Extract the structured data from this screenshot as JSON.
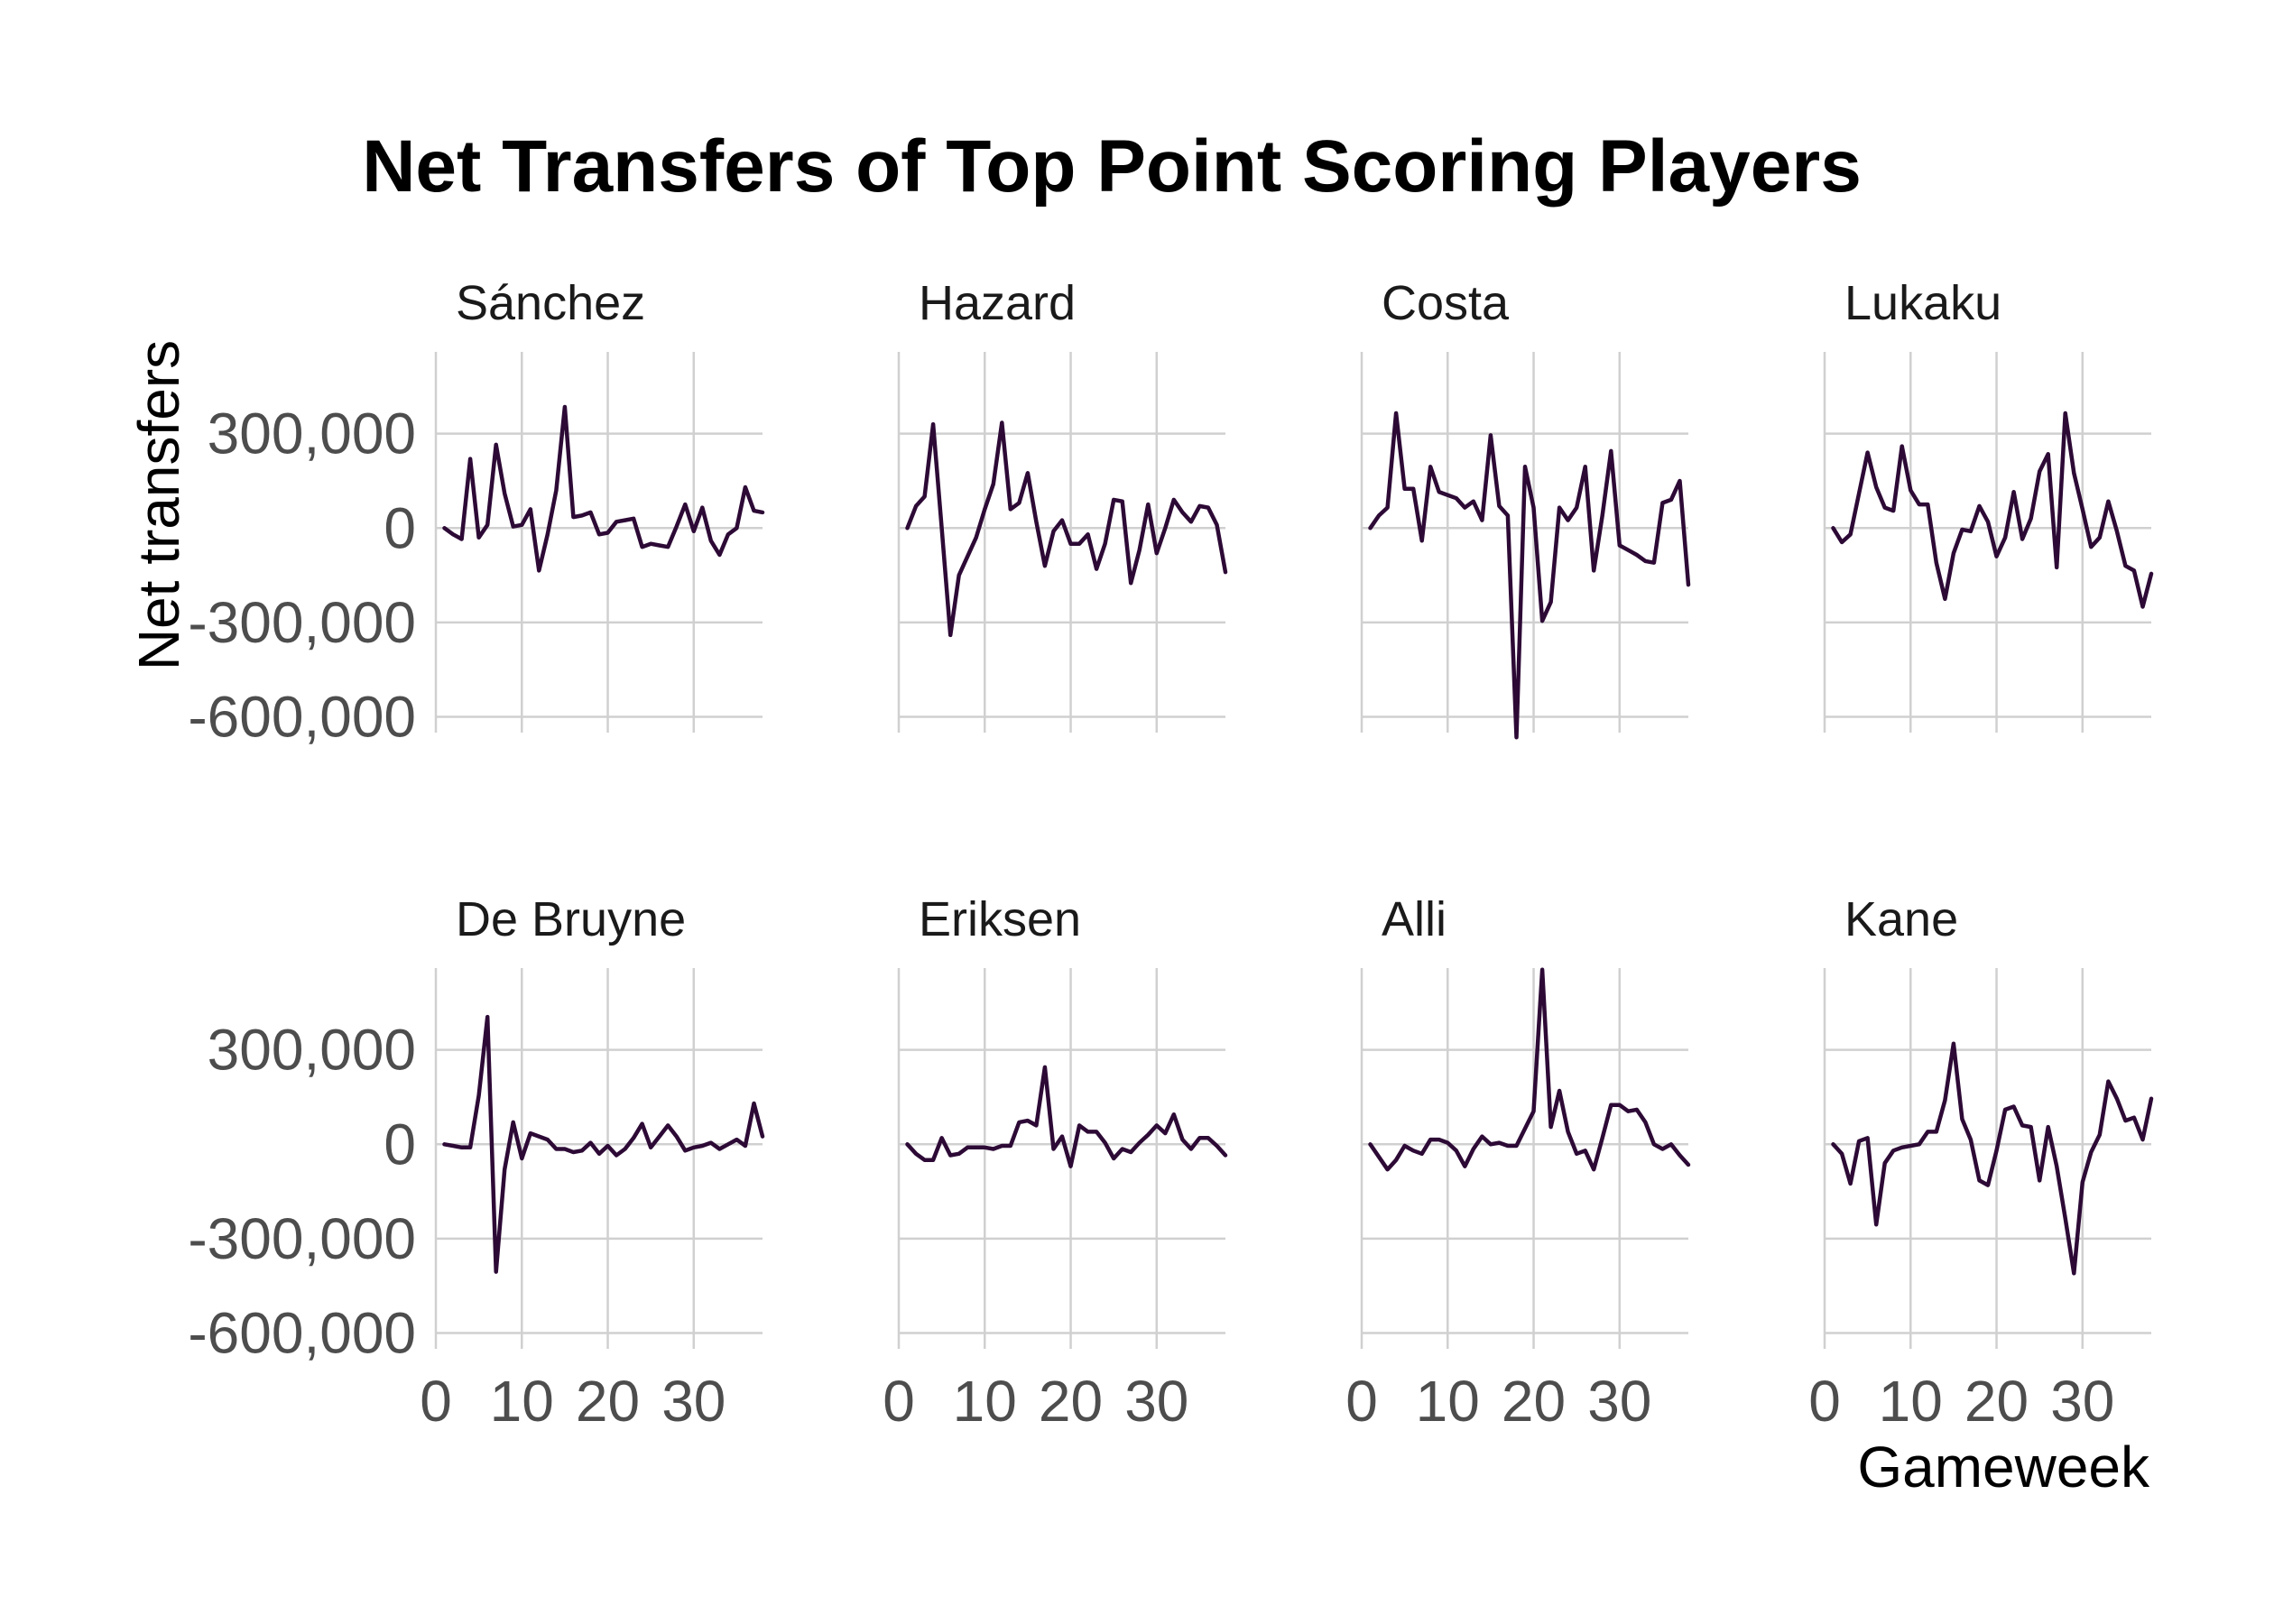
{
  "chart_data": {
    "type": "line",
    "title": "Net Transfers of Top Point Scoring Players",
    "xlabel": "Gameweek",
    "ylabel": "Net transfers",
    "xlim": [
      0,
      38
    ],
    "ylim": [
      -650000,
      560000
    ],
    "x_ticks": [
      0,
      10,
      20,
      30
    ],
    "y_ticks": [
      300000,
      0,
      -300000,
      -600000
    ],
    "y_tick_labels": [
      "300,000",
      "0",
      "-300,000",
      "-600,000"
    ],
    "grid": true,
    "line_color": "#2d0a36",
    "facets": [
      {
        "name": "Sánchez",
        "x": [
          1,
          2,
          3,
          4,
          5,
          6,
          7,
          8,
          9,
          10,
          11,
          12,
          13,
          14,
          15,
          16,
          17,
          18,
          19,
          20,
          21,
          22,
          23,
          24,
          25,
          26,
          27,
          28,
          29,
          30,
          31,
          32,
          33,
          34,
          35,
          36,
          37,
          38
        ],
        "values": [
          0,
          -20000,
          -35000,
          220000,
          -30000,
          10000,
          265000,
          110000,
          5000,
          10000,
          60000,
          -135000,
          -20000,
          120000,
          385000,
          35000,
          40000,
          50000,
          -20000,
          -15000,
          20000,
          25000,
          30000,
          -60000,
          -50000,
          -55000,
          -60000,
          5000,
          75000,
          -10000,
          65000,
          -40000,
          -85000,
          -20000,
          0,
          130000,
          55000,
          50000
        ]
      },
      {
        "name": "Hazard",
        "x": [
          1,
          2,
          3,
          4,
          5,
          6,
          7,
          8,
          9,
          10,
          11,
          12,
          13,
          14,
          15,
          16,
          17,
          18,
          19,
          20,
          21,
          22,
          23,
          24,
          25,
          26,
          27,
          28,
          29,
          30,
          31,
          32,
          33,
          34,
          35,
          36,
          37,
          38
        ],
        "values": [
          0,
          70000,
          100000,
          330000,
          0,
          -340000,
          -150000,
          -90000,
          -30000,
          60000,
          140000,
          335000,
          60000,
          80000,
          175000,
          20000,
          -120000,
          -10000,
          25000,
          -50000,
          -50000,
          -20000,
          -130000,
          -50000,
          90000,
          85000,
          -175000,
          -70000,
          75000,
          -80000,
          0,
          90000,
          50000,
          20000,
          70000,
          65000,
          10000,
          -140000
        ]
      },
      {
        "name": "Costa",
        "x": [
          1,
          2,
          3,
          4,
          5,
          6,
          7,
          8,
          9,
          10,
          11,
          12,
          13,
          14,
          15,
          16,
          17,
          18,
          19,
          20,
          21,
          22,
          23,
          24,
          25,
          26,
          27,
          28,
          29,
          30,
          31,
          32,
          33,
          34,
          35,
          36,
          37,
          38
        ],
        "values": [
          0,
          40000,
          65000,
          365000,
          125000,
          125000,
          -40000,
          195000,
          115000,
          105000,
          95000,
          65000,
          85000,
          25000,
          295000,
          70000,
          40000,
          -665000,
          195000,
          65000,
          -295000,
          -235000,
          65000,
          25000,
          65000,
          195000,
          -135000,
          40000,
          245000,
          -55000,
          -70000,
          -85000,
          -105000,
          -110000,
          80000,
          90000,
          150000,
          -180000
        ]
      },
      {
        "name": "Lukaku",
        "x": [
          1,
          2,
          3,
          4,
          5,
          6,
          7,
          8,
          9,
          10,
          11,
          12,
          13,
          14,
          15,
          16,
          17,
          18,
          19,
          20,
          21,
          22,
          23,
          24,
          25,
          26,
          27,
          28,
          29,
          30,
          31,
          32,
          33,
          34,
          35,
          36,
          37,
          38
        ],
        "values": [
          0,
          -45000,
          -20000,
          110000,
          240000,
          130000,
          65000,
          55000,
          260000,
          120000,
          75000,
          75000,
          -110000,
          -225000,
          -80000,
          -5000,
          -10000,
          70000,
          20000,
          -90000,
          -30000,
          115000,
          -35000,
          30000,
          180000,
          235000,
          -125000,
          365000,
          175000,
          60000,
          -60000,
          -30000,
          85000,
          -10000,
          -120000,
          -135000,
          -250000,
          -145000
        ]
      },
      {
        "name": "De Bruyne",
        "x": [
          1,
          2,
          3,
          4,
          5,
          6,
          7,
          8,
          9,
          10,
          11,
          12,
          13,
          14,
          15,
          16,
          17,
          18,
          19,
          20,
          21,
          22,
          23,
          24,
          25,
          26,
          27,
          28,
          29,
          30,
          31,
          32,
          33,
          34,
          35,
          36,
          37,
          38
        ],
        "values": [
          0,
          -5000,
          -10000,
          -10000,
          155000,
          405000,
          -405000,
          -80000,
          70000,
          -45000,
          35000,
          25000,
          15000,
          -15000,
          -15000,
          -25000,
          -20000,
          5000,
          -30000,
          -5000,
          -35000,
          -15000,
          20000,
          65000,
          -10000,
          25000,
          60000,
          25000,
          -20000,
          -10000,
          -5000,
          5000,
          -15000,
          0,
          15000,
          -5000,
          130000,
          25000
        ]
      },
      {
        "name": "Eriksen",
        "x": [
          1,
          2,
          3,
          4,
          5,
          6,
          7,
          8,
          9,
          10,
          11,
          12,
          13,
          14,
          15,
          16,
          17,
          18,
          19,
          20,
          21,
          22,
          23,
          24,
          25,
          26,
          27,
          28,
          29,
          30,
          31,
          32,
          33,
          34,
          35,
          36,
          37,
          38
        ],
        "values": [
          0,
          -30000,
          -50000,
          -50000,
          20000,
          -35000,
          -30000,
          -10000,
          -10000,
          -10000,
          -15000,
          -5000,
          -5000,
          70000,
          75000,
          60000,
          245000,
          -15000,
          25000,
          -70000,
          60000,
          40000,
          40000,
          5000,
          -45000,
          -15000,
          -25000,
          5000,
          30000,
          60000,
          35000,
          95000,
          15000,
          -15000,
          20000,
          20000,
          -5000,
          -35000
        ]
      },
      {
        "name": "Alli",
        "x": [
          1,
          2,
          3,
          4,
          5,
          6,
          7,
          8,
          9,
          10,
          11,
          12,
          13,
          14,
          15,
          16,
          17,
          18,
          19,
          20,
          21,
          22,
          23,
          24,
          25,
          26,
          27,
          28,
          29,
          30,
          31,
          32,
          33,
          34,
          35,
          36,
          37,
          38
        ],
        "values": [
          0,
          -40000,
          -80000,
          -50000,
          -5000,
          -20000,
          -30000,
          15000,
          15000,
          5000,
          -20000,
          -70000,
          -15000,
          25000,
          0,
          5000,
          -5000,
          -5000,
          50000,
          105000,
          555000,
          55000,
          170000,
          40000,
          -30000,
          -20000,
          -80000,
          20000,
          125000,
          125000,
          105000,
          110000,
          70000,
          0,
          -15000,
          0,
          -35000,
          -65000
        ]
      },
      {
        "name": "Kane",
        "x": [
          1,
          2,
          3,
          4,
          5,
          6,
          7,
          8,
          9,
          10,
          11,
          12,
          13,
          14,
          15,
          16,
          17,
          18,
          19,
          20,
          21,
          22,
          23,
          24,
          25,
          26,
          27,
          28,
          29,
          30,
          31,
          32,
          33,
          34,
          35,
          36,
          37,
          38
        ],
        "values": [
          0,
          -30000,
          -125000,
          10000,
          20000,
          -255000,
          -60000,
          -20000,
          -10000,
          -5000,
          0,
          40000,
          40000,
          140000,
          320000,
          80000,
          15000,
          -115000,
          -130000,
          -20000,
          110000,
          120000,
          60000,
          55000,
          -115000,
          55000,
          -70000,
          -235000,
          -410000,
          -120000,
          -25000,
          30000,
          200000,
          145000,
          75000,
          85000,
          15000,
          145000
        ]
      }
    ]
  }
}
